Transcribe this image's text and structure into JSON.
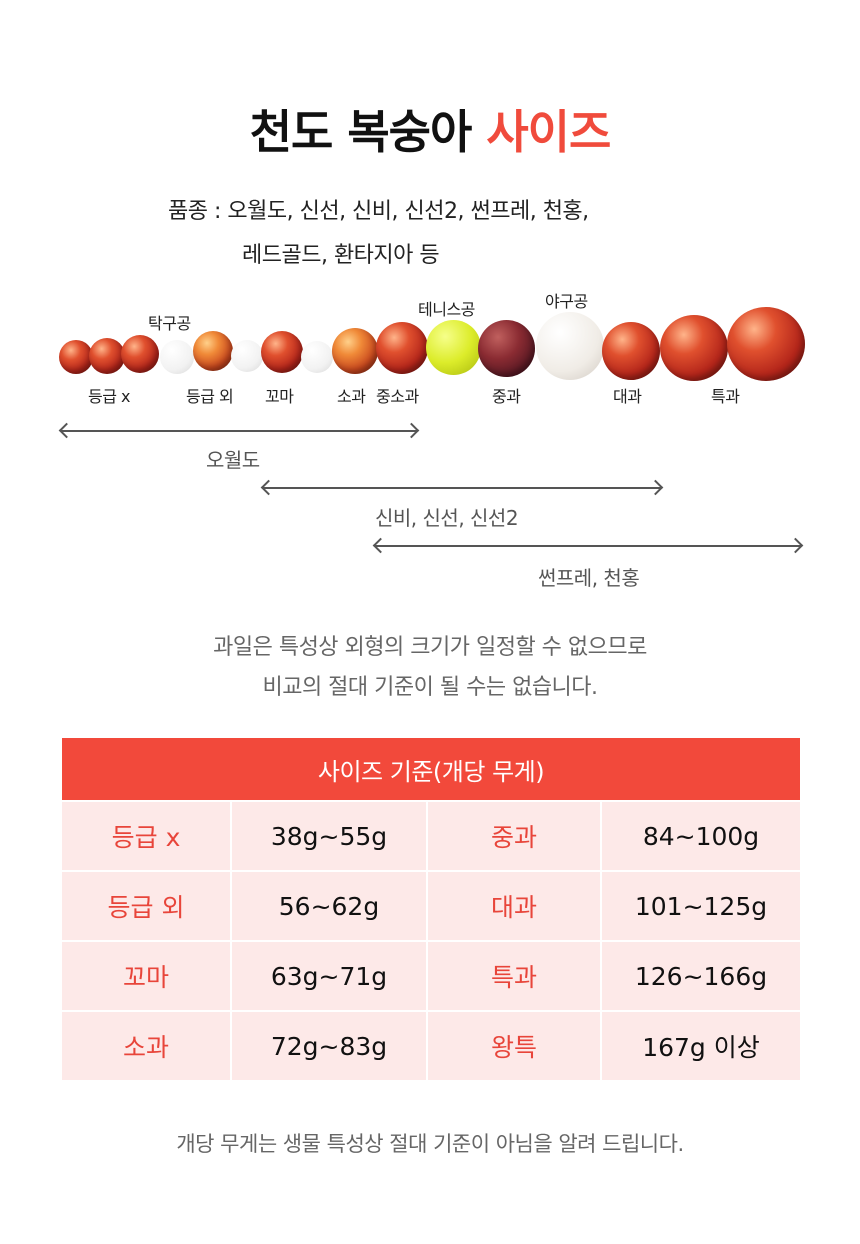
{
  "title": {
    "main": "천도 복숭아",
    "accent": "사이즈"
  },
  "variety": {
    "line1": "품종 : 오월도, 신선, 신비, 신선2, 썬프레, 천홍,",
    "line2": "레드골드, 환타지아 등"
  },
  "comparison": {
    "labels_top": {
      "pingpong": "탁구공",
      "tennis": "테니스공",
      "baseball": "야구공"
    },
    "labels_bottom": {
      "grade_x": "등급 x",
      "grade_out": "등급 외",
      "kkoma": "꼬마",
      "sogwa": "소과",
      "jungsogwa": "중소과",
      "junggwa": "중과",
      "daegwa": "대과",
      "teukgwa": "특과"
    }
  },
  "ranges": [
    {
      "label": "오월도"
    },
    {
      "label": "신비, 신선, 신선2"
    },
    {
      "label": "썬프레, 천홍"
    }
  ],
  "note": {
    "line1": "과일은 특성상 외형의 크기가 일정할 수 없으므로",
    "line2": "비교의 절대 기준이 될 수는 없습니다."
  },
  "table": {
    "header": "사이즈 기준(개당 무게)",
    "rows": [
      {
        "grade1": "등급 x",
        "weight1": "38g~55g",
        "grade2": "중과",
        "weight2": "84~100g"
      },
      {
        "grade1": "등급 외",
        "weight1": "56~62g",
        "grade2": "대과",
        "weight2": "101~125g"
      },
      {
        "grade1": "꼬마",
        "weight1": "63g~71g",
        "grade2": "특과",
        "weight2": "126~166g"
      },
      {
        "grade1": "소과",
        "weight1": "72g~83g",
        "grade2": "왕특",
        "weight2": "167g 이상"
      }
    ]
  },
  "footnote": "개당 무게는 생물 특성상 절대 기준이 아님을 알려 드립니다.",
  "colors": {
    "accent": "#f04b3c",
    "table_header": "#f2493b",
    "cell_bg": "#fde9e8"
  }
}
